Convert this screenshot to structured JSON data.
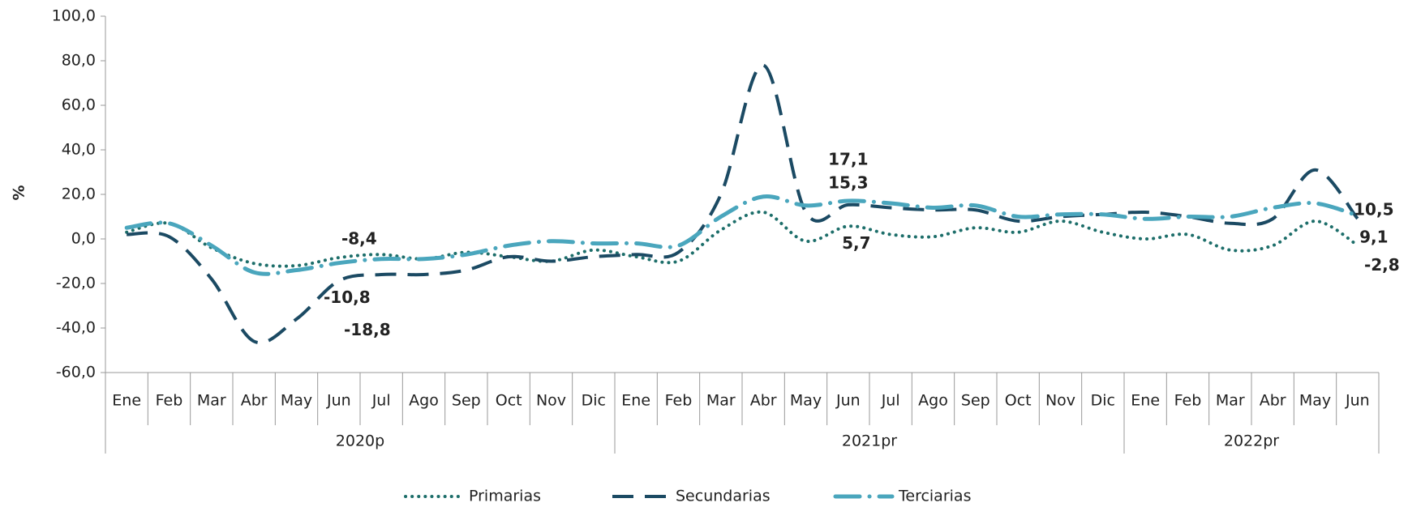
{
  "chart_data": {
    "type": "line",
    "ylabel": "%",
    "categories": [
      "Ene",
      "Feb",
      "Mar",
      "Abr",
      "May",
      "Jun",
      "Jul",
      "Ago",
      "Sep",
      "Oct",
      "Nov",
      "Dic",
      "Ene",
      "Feb",
      "Mar",
      "Abr",
      "May",
      "Jun",
      "Jul",
      "Ago",
      "Sep",
      "Oct",
      "Nov",
      "Dic",
      "Ene",
      "Feb",
      "Mar",
      "Abr",
      "May",
      "Jun"
    ],
    "groups": [
      "2020p",
      "2021pr",
      "2022pr"
    ],
    "ylim": [
      -60,
      100
    ],
    "yticks": [
      {
        "value": -60,
        "label": "-60,0"
      },
      {
        "value": -40,
        "label": "-40,0"
      },
      {
        "value": -20,
        "label": "-20,0"
      },
      {
        "value": 0,
        "label": "0,0"
      },
      {
        "value": 20,
        "label": "20,0"
      },
      {
        "value": 40,
        "label": "40,0"
      },
      {
        "value": 60,
        "label": "60,0"
      },
      {
        "value": 80,
        "label": "80,0"
      },
      {
        "value": 100,
        "label": "100,0"
      }
    ],
    "series": [
      {
        "name": "Primarias",
        "color": "#1d6e6a",
        "style": "dotted",
        "values": [
          3,
          7,
          -4,
          -11,
          -12,
          -8.4,
          -7,
          -9,
          -6,
          -8,
          -10,
          -5,
          -8,
          -10,
          4,
          12,
          -1,
          5.7,
          2,
          1,
          5,
          3,
          8,
          3,
          0,
          2,
          -5,
          -3,
          8,
          -2.8
        ],
        "value_labels": [
          null,
          null,
          null,
          null,
          null,
          "-8,4",
          null,
          null,
          null,
          null,
          null,
          null,
          null,
          null,
          null,
          null,
          null,
          "5,7",
          null,
          null,
          null,
          null,
          null,
          null,
          null,
          null,
          null,
          null,
          null,
          "-2,8"
        ]
      },
      {
        "name": "Secundarias",
        "color": "#1b4a63",
        "style": "dashed",
        "values": [
          2,
          1,
          -18,
          -46,
          -36,
          -18.8,
          -16,
          -16,
          -14,
          -8,
          -10,
          -8,
          -7,
          -6,
          20,
          78,
          12,
          15.3,
          14,
          13,
          13,
          8,
          10,
          11,
          12,
          10,
          7,
          9,
          31,
          9.1
        ],
        "value_labels": [
          null,
          null,
          null,
          null,
          null,
          "-18,8",
          null,
          null,
          null,
          null,
          null,
          null,
          null,
          null,
          null,
          null,
          null,
          "15,3",
          null,
          null,
          null,
          null,
          null,
          null,
          null,
          null,
          null,
          null,
          null,
          "9,1"
        ]
      },
      {
        "name": "Terciarias",
        "color": "#4aa6bd",
        "style": "dashdot",
        "values": [
          5,
          7,
          -3,
          -15,
          -14,
          -10.8,
          -9,
          -9,
          -7,
          -3,
          -1,
          -2,
          -2,
          -3,
          10,
          19,
          15,
          17.1,
          16,
          14,
          15,
          10,
          11,
          11,
          9,
          10,
          10,
          14,
          16,
          10.5
        ],
        "value_labels": [
          null,
          null,
          null,
          null,
          null,
          "-10,8",
          null,
          null,
          null,
          null,
          null,
          null,
          null,
          null,
          null,
          null,
          null,
          "17,1",
          null,
          null,
          null,
          null,
          null,
          null,
          null,
          null,
          null,
          null,
          null,
          "10,5"
        ]
      }
    ]
  }
}
